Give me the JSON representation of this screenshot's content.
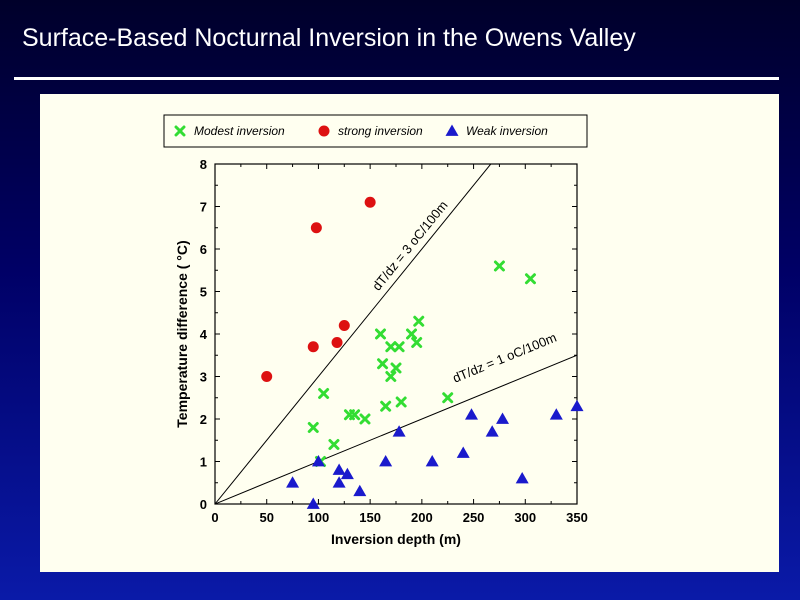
{
  "slide": {
    "title": "Surface-Based Nocturnal Inversion in the Owens Valley"
  },
  "colors": {
    "modest": "#33dd33",
    "strong": "#dd1111",
    "weak": "#1a1acc"
  },
  "chart_data": {
    "type": "scatter",
    "title": "",
    "xlabel": "Inversion depth (m)",
    "ylabel": "Temperature difference ( °C)",
    "xlim": [
      0,
      350
    ],
    "ylim": [
      0,
      8
    ],
    "xticks": [
      0,
      50,
      100,
      150,
      200,
      250,
      300,
      350
    ],
    "yticks": [
      0,
      1,
      2,
      3,
      4,
      5,
      6,
      7,
      8
    ],
    "grid": false,
    "legend_position": "top",
    "series": [
      {
        "name": "Modest inversion",
        "marker": "x",
        "points": [
          [
            95,
            1.8
          ],
          [
            105,
            2.6
          ],
          [
            115,
            1.4
          ],
          [
            130,
            2.1
          ],
          [
            135,
            2.1
          ],
          [
            145,
            2.0
          ],
          [
            160,
            4.0
          ],
          [
            162,
            3.3
          ],
          [
            165,
            2.3
          ],
          [
            170,
            3.7
          ],
          [
            170,
            3.0
          ],
          [
            175,
            3.2
          ],
          [
            178,
            3.7
          ],
          [
            180,
            2.4
          ],
          [
            190,
            4.0
          ],
          [
            195,
            3.8
          ],
          [
            197,
            4.3
          ],
          [
            225,
            2.5
          ],
          [
            275,
            5.6
          ],
          [
            305,
            5.3
          ],
          [
            102,
            1.0
          ]
        ]
      },
      {
        "name": "strong inversion",
        "marker": "circle",
        "points": [
          [
            50,
            3.0
          ],
          [
            95,
            3.7
          ],
          [
            98,
            6.5
          ],
          [
            118,
            3.8
          ],
          [
            125,
            4.2
          ],
          [
            150,
            7.1
          ]
        ]
      },
      {
        "name": "Weak inversion",
        "marker": "triangle",
        "points": [
          [
            75,
            0.5
          ],
          [
            95,
            0.0
          ],
          [
            100,
            1.0
          ],
          [
            120,
            0.8
          ],
          [
            120,
            0.5
          ],
          [
            128,
            0.7
          ],
          [
            140,
            0.3
          ],
          [
            165,
            1.0
          ],
          [
            178,
            1.7
          ],
          [
            210,
            1.0
          ],
          [
            240,
            1.2
          ],
          [
            248,
            2.1
          ],
          [
            268,
            1.7
          ],
          [
            278,
            2.0
          ],
          [
            297,
            0.6
          ],
          [
            330,
            2.1
          ],
          [
            350,
            2.3
          ]
        ]
      }
    ],
    "reference_lines": [
      {
        "label": "dT/dz = 3 oC/100m",
        "slope": 0.03
      },
      {
        "label": "dT/dz = 1 oC/100m",
        "slope": 0.01
      }
    ]
  }
}
